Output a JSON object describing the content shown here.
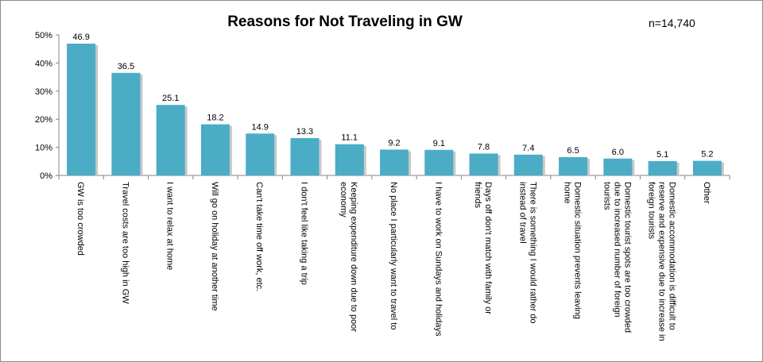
{
  "chart_data": {
    "type": "bar",
    "title": "Reasons for Not Traveling in GW",
    "annotation": "n=14,740",
    "categories": [
      "GW is too crowded",
      "Travel costs are too high in GW",
      "I want to relax at home",
      "Will go on holiday at another time",
      "Can't take time off work, etc.",
      "I don't feel like taking a trip",
      "Keeping expenditure down due to poor economy",
      "No place I particularly want to travel to",
      "I have to work on Sundays and holidays",
      "Days off don't match with family or friends",
      "There is something I would rather do instead of travel",
      "Domestic situation prevents leaving home",
      "Domestic tourist spots are too crowded due to increased number of foreign tourists",
      "Domestic accommodation is difficult to reserve and expensive due to increase in foreign tourists",
      "Other"
    ],
    "category_lines": [
      [
        "GW is too crowded"
      ],
      [
        "Travel costs are too high in GW"
      ],
      [
        "I want to relax at home"
      ],
      [
        "Will go on holiday at another time"
      ],
      [
        "Can't take time off work, etc."
      ],
      [
        "I don't feel like taking a trip"
      ],
      [
        "Keeping expenditure down due to poor",
        "economy"
      ],
      [
        "No place I particularly want to travel to"
      ],
      [
        "I have to work on Sundays and holidays"
      ],
      [
        "Days off don't match with family or",
        "friends"
      ],
      [
        "There is something I would rather do",
        "instead of travel"
      ],
      [
        "Domestic situation prevents leaving",
        "home"
      ],
      [
        "Domestic tourist spots are too crowded",
        "due to increased number of foreign",
        "tourists"
      ],
      [
        "Domestic accommodation is difficult to",
        "reserve and expensive due to increase in",
        "foreign tourists"
      ],
      [
        "Other"
      ]
    ],
    "values": [
      46.9,
      36.5,
      25.1,
      18.2,
      14.9,
      13.3,
      11.1,
      9.2,
      9.1,
      7.8,
      7.4,
      6.5,
      6.0,
      5.1,
      5.2
    ],
    "data_labels": [
      "46.9",
      "36.5",
      "25.1",
      "18.2",
      "14.9",
      "13.3",
      "11.1",
      "9.2",
      "9.1",
      "7.8",
      "7.4",
      "6.5",
      "6.0",
      "5.1",
      "5.2"
    ],
    "yticks": [
      "0%",
      "10%",
      "20%",
      "30%",
      "40%",
      "50%"
    ],
    "ylim": [
      0,
      50
    ],
    "xlabel": "",
    "ylabel": "",
    "grid": false,
    "legend": "none",
    "bar_color": "#4bacc6",
    "bar_shadow_color": "#c8c8c8"
  }
}
